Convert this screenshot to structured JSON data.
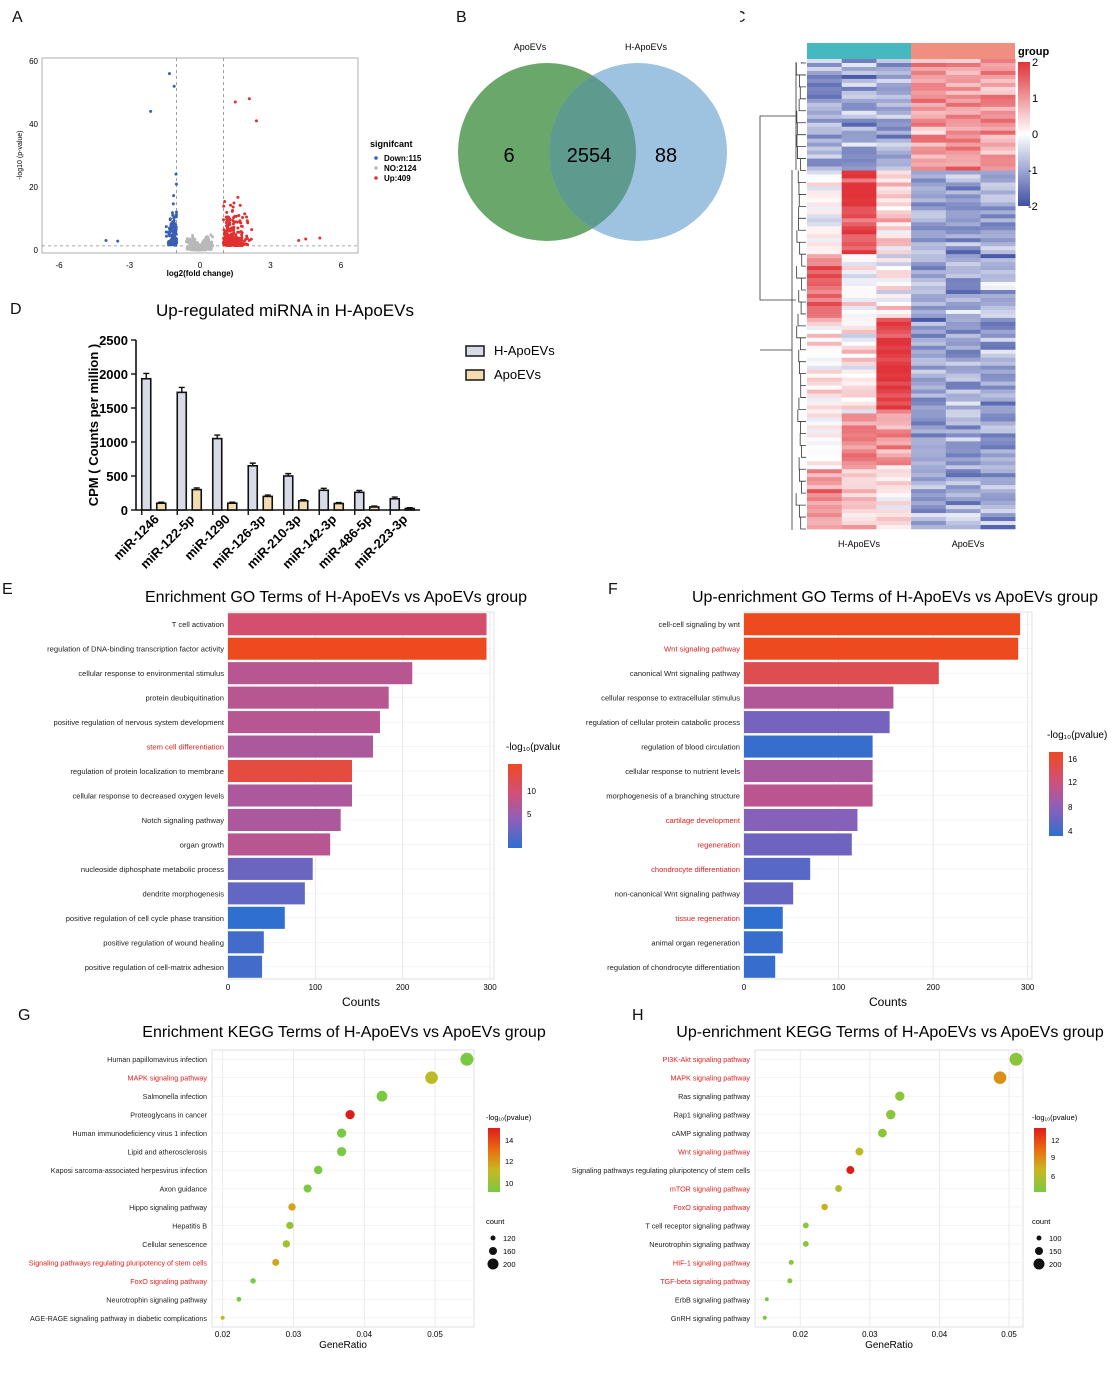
{
  "panel_letters": {
    "A": "A",
    "B": "B",
    "C": "C",
    "D": "D",
    "E": "E",
    "F": "F",
    "G": "G",
    "H": "H"
  },
  "colors": {
    "down": "#3a5fb0",
    "ns": "#b8b8b8",
    "up": "#e03030",
    "venn_left": "#6aa76a",
    "venn_right": "#9ec3e0",
    "venn_overlap": "#5f9a8f",
    "heat_low": "#3f51a5",
    "heat_mid": "#ffffff",
    "heat_high": "#e0333a",
    "group_h": "#46b8c0",
    "group_a": "#f08e80",
    "bar_h": "#d8dbe6",
    "bar_a": "#f5dcb0",
    "highlight_text": "#e02020"
  },
  "volcano": {
    "legend_title": "signifcant",
    "legend": [
      "Down:115",
      "NO:2124",
      "Up:409"
    ],
    "xlabel": "log2(fold change)",
    "ylabel": "-log10 (p-value)",
    "xticks": [
      "-6",
      "-3",
      "0",
      "3",
      "6"
    ],
    "yticks": [
      "0",
      "20",
      "40",
      "60"
    ]
  },
  "venn": {
    "left_label": "ApoEVs",
    "right_label": "H-ApoEVs",
    "left_only": "6",
    "both": "2554",
    "right_only": "88"
  },
  "heatmap": {
    "group_title": "group",
    "scale_ticks": [
      "2",
      "1",
      "0",
      "-1",
      "-2"
    ],
    "col_labels": [
      "H-ApoEVs",
      "ApoEVs"
    ]
  },
  "chart_data": [
    {
      "type": "bar",
      "title": "Up-regulated miRNA in H-ApoEVs",
      "ylabel": "CPM ( Counts per million )",
      "xlabel": "",
      "ylim": [
        0,
        2500
      ],
      "yticks": [
        "0",
        "500",
        "1000",
        "1500",
        "2000",
        "2500"
      ],
      "categories": [
        "miR-1246",
        "miR-122-5p",
        "miR-1290",
        "miR-126-3p",
        "miR-210-3p",
        "miR-142-3p",
        "miR-486-5p",
        "miR-223-3p"
      ],
      "series": [
        {
          "name": "H-ApoEVs",
          "values": [
            1930,
            1730,
            1050,
            650,
            500,
            290,
            260,
            165
          ]
        },
        {
          "name": "ApoEVs",
          "values": [
            100,
            300,
            100,
            200,
            135,
            95,
            45,
            22
          ]
        }
      ]
    },
    {
      "type": "bar",
      "title": "Enrichment GO Terms of H-ApoEVs vs ApoEVs group",
      "xlabel": "Counts",
      "xticks": [
        "0",
        "100",
        "200",
        "300"
      ],
      "xlim": [
        0,
        300
      ],
      "legend_title": "-log₁₀(pvalue)",
      "legend_ticks": [
        "10",
        "5"
      ],
      "categories": [
        "T cell activation",
        "regulation of DNA-binding transcription factor activity",
        "cellular response to environmental stimulus",
        "protein deubiquitination",
        "positive regulation of nervous system development",
        "stem cell differentiation",
        "regulation of protein localization to membrane",
        "cellular response to decreased oxygen levels",
        "Notch signaling pathway",
        "organ growth",
        "nucleoside diphosphate metabolic process",
        "dendrite morphogenesis",
        "positive regulation of cell cycle phase transition",
        "positive regulation of wound healing",
        "positive regulation of cell-matrix adhesion"
      ],
      "values": [
        296,
        296,
        211,
        184,
        174,
        166,
        142,
        142,
        129,
        117,
        97,
        88,
        65,
        41,
        39
      ],
      "pvalue": [
        11,
        13.5,
        9.5,
        9.5,
        9.5,
        9,
        12.5,
        9,
        9,
        9.5,
        6,
        5.5,
        3,
        4,
        4
      ],
      "highlight": [
        false,
        false,
        false,
        false,
        false,
        true,
        false,
        false,
        false,
        false,
        false,
        false,
        false,
        false,
        false
      ]
    },
    {
      "type": "bar",
      "title": "Up-enrichment GO Terms of H-ApoEVs vs ApoEVs group",
      "xlabel": "Counts",
      "xticks": [
        "0",
        "100",
        "200",
        "300"
      ],
      "xlim": [
        0,
        300
      ],
      "legend_title": "-log₁₀(pvalue)",
      "legend_ticks": [
        "16",
        "12",
        "8",
        "4"
      ],
      "categories": [
        "cell-cell signaling by wnt",
        "Wnt signaling pathway",
        "canonical Wnt signaling pathway",
        "cellular response to extracellular stimulus",
        "regulation of cellular protein catabolic process",
        "regulation of blood circulation",
        "cellular response to nutrient levels",
        "morphogenesis of a branching structure",
        "cartilage development",
        "regeneration",
        "chondrocyte differentiation",
        "non-canonical Wnt signaling pathway",
        "tissue regeneration",
        "animal organ regeneration",
        "regulation of chondrocyte differentiation"
      ],
      "values": [
        292,
        290,
        206,
        158,
        154,
        136,
        136,
        136,
        120,
        114,
        70,
        52,
        41,
        41,
        33
      ],
      "pvalue": [
        16,
        16,
        14,
        10.5,
        7,
        3,
        10,
        11,
        8,
        6.5,
        5,
        6,
        2.5,
        3,
        3
      ],
      "highlight": [
        false,
        true,
        false,
        false,
        false,
        false,
        false,
        false,
        true,
        true,
        true,
        false,
        true,
        false,
        false
      ]
    },
    {
      "type": "scatter",
      "title": "Enrichment KEGG Terms of H-ApoEVs vs ApoEVs group",
      "xlabel": "GeneRatio",
      "xticks": [
        "0.02",
        "0.03",
        "0.04",
        "0.05"
      ],
      "xlim": [
        0.0185,
        0.0555
      ],
      "legend_title": "-log₁₀(pvalue)",
      "legend_ticks": [
        "14",
        "12",
        "10"
      ],
      "size_title": "count",
      "size_ticks": [
        "120",
        "160",
        "200"
      ],
      "categories": [
        "Human papillomavirus infection",
        "MAPK signaling pathway",
        "Salmonella infection",
        "Proteoglycans in cancer",
        "Human immunodeficiency virus 1 infection",
        "Lipid and atherosclerosis",
        "Kaposi sarcoma-associated herpesvirus infection",
        "Axon guidance",
        "Hippo signaling pathway",
        "Hepatitis B",
        "Cellular senescence",
        "Signaling pathways regulating pluripotency of stem cells",
        "FoxO signaling pathway",
        "Neurotrophin signaling pathway",
        "AGE-RAGE signaling pathway in diabetic complications"
      ],
      "x": [
        0.0545,
        0.0495,
        0.0425,
        0.038,
        0.0368,
        0.0368,
        0.0335,
        0.032,
        0.0298,
        0.0295,
        0.029,
        0.0275,
        0.0243,
        0.0223,
        0.02
      ],
      "pvalue": [
        9.5,
        12,
        9.5,
        15.5,
        9.5,
        9.5,
        9.5,
        9.5,
        13,
        10.5,
        11,
        13,
        9.5,
        9.5,
        12
      ],
      "count": [
        210,
        205,
        180,
        160,
        160,
        160,
        150,
        145,
        135,
        135,
        135,
        130,
        110,
        100,
        90
      ],
      "highlight": [
        false,
        true,
        false,
        false,
        false,
        false,
        false,
        false,
        false,
        false,
        false,
        true,
        true,
        false,
        false
      ]
    },
    {
      "type": "scatter",
      "title": "Up-enrichment KEGG Terms of H-ApoEVs vs ApoEVs group",
      "xlabel": "GeneRatio",
      "xticks": [
        "0.02",
        "0.03",
        "0.04",
        "0.05"
      ],
      "xlim": [
        0.0135,
        0.052
      ],
      "legend_title": "-log₁₀(pvalue)",
      "legend_ticks": [
        "12",
        "9",
        "6"
      ],
      "size_title": "count",
      "size_ticks": [
        "100",
        "150",
        "200"
      ],
      "categories": [
        "PI3K-Akt signaling pathway",
        "MAPK signaling pathway",
        "Ras signaling pathway",
        "Rap1 signaling pathway",
        "cAMP signaling pathway",
        "Wnt signaling pathway",
        "Signaling pathways regulating pluripotency of stem cells",
        "mTOR signaling pathway",
        "FoxO signaling pathway",
        "T cell receptor signaling pathway",
        "Neurotrophin signaling pathway",
        "HIF-1 signaling pathway",
        "TGF-beta signaling pathway",
        "ErbB signaling pathway",
        "GnRH signaling pathway"
      ],
      "x": [
        0.051,
        0.0487,
        0.0343,
        0.033,
        0.0318,
        0.0285,
        0.0272,
        0.0255,
        0.0235,
        0.0208,
        0.0208,
        0.0187,
        0.0185,
        0.0152,
        0.0149
      ],
      "pvalue": [
        6,
        11,
        6,
        6,
        6,
        9,
        14,
        8,
        10,
        6,
        6,
        6,
        6,
        5,
        5
      ],
      "count": [
        210,
        205,
        160,
        160,
        150,
        140,
        140,
        125,
        120,
        110,
        110,
        100,
        100,
        85,
        85
      ],
      "highlight": [
        true,
        true,
        false,
        false,
        false,
        true,
        false,
        true,
        true,
        false,
        false,
        true,
        true,
        false,
        false
      ]
    }
  ]
}
